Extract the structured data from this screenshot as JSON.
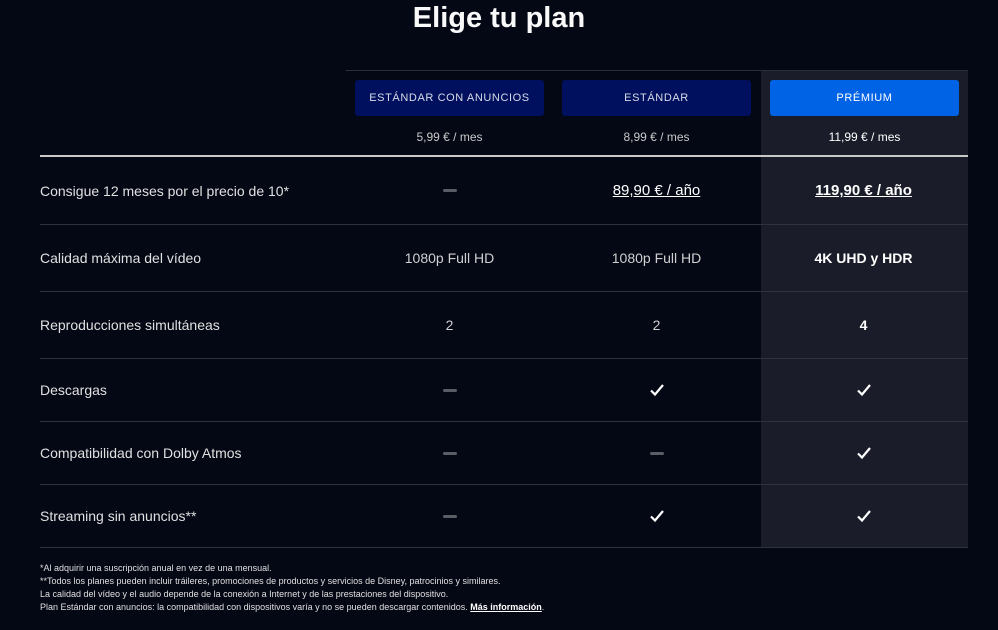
{
  "title": "Elige tu plan",
  "plans": [
    {
      "name": "ESTÁNDAR CON ANUNCIOS",
      "price": "5,99 € / mes"
    },
    {
      "name": "ESTÁNDAR",
      "price": "8,99 € / mes"
    },
    {
      "name": "PRÉMIUM",
      "price": "11,99 € / mes"
    }
  ],
  "rows": [
    {
      "label": "Consigue 12 meses por el precio de 10*",
      "values": [
        "dash",
        "89,90 € / año",
        "119,90 € / año"
      ]
    },
    {
      "label": "Calidad máxima del vídeo",
      "values": [
        "1080p Full HD",
        "1080p Full HD",
        "4K UHD y HDR"
      ]
    },
    {
      "label": "Reproducciones simultáneas",
      "values": [
        "2",
        "2",
        "4"
      ]
    },
    {
      "label": "Descargas",
      "values": [
        "dash",
        "check",
        "check"
      ]
    },
    {
      "label": "Compatibilidad con Dolby Atmos",
      "values": [
        "dash",
        "dash",
        "check"
      ]
    },
    {
      "label": "Streaming sin anuncios**",
      "values": [
        "dash",
        "check",
        "check"
      ]
    }
  ],
  "footnotes": [
    "*Al adquirir una suscripción anual en vez de una mensual.",
    "**Todos los planes pueden incluir tráileres, promociones de productos y servicios de Disney, patrocinios y similares.",
    "La calidad del vídeo y el audio depende de la conexión a Internet y de las prestaciones del dispositivo.",
    "Plan Estándar con anuncios: la compatibilidad con dispositivos varía y no se pueden descargar contenidos."
  ],
  "more_info": "Más información",
  "colors": {
    "background": "#040714",
    "premium_column": "#1a1d29",
    "premium_button": "#0063e5",
    "plan_button": "#00105e"
  }
}
